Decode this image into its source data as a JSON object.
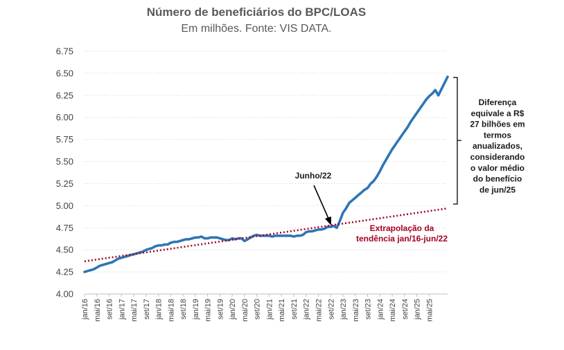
{
  "chart_data": {
    "type": "line",
    "title": "Número de beneficiários do BPC/LOAS",
    "subtitle": "Em milhões. Fonte: VIS DATA.",
    "ylim": [
      4.0,
      6.75
    ],
    "yticks": [
      "4.00",
      "4.25",
      "4.50",
      "4.75",
      "5.00",
      "5.25",
      "5.50",
      "5.75",
      "6.00",
      "6.25",
      "6.50",
      "6.75"
    ],
    "grid": true,
    "x_tick_labels": [
      "jan/16",
      "mai/16",
      "set/16",
      "jan/17",
      "mai/17",
      "set/17",
      "jan/18",
      "mai/18",
      "set/18",
      "jan/19",
      "mai/19",
      "set/19",
      "jan/20",
      "mai/20",
      "set/20",
      "jan/21",
      "mai/21",
      "set/21",
      "jan/22",
      "mai/22",
      "set/22",
      "jan/23",
      "mai/23",
      "set/23",
      "jan/24",
      "mai/24",
      "set/24",
      "jan/25",
      "mai/25"
    ],
    "series": [
      {
        "style": "line",
        "color": "#2e75b6",
        "start": "jan/16",
        "end": "jun/25",
        "values": [
          4.25,
          4.26,
          4.27,
          4.28,
          4.3,
          4.32,
          4.33,
          4.34,
          4.35,
          4.36,
          4.38,
          4.4,
          4.41,
          4.42,
          4.43,
          4.44,
          4.45,
          4.46,
          4.47,
          4.48,
          4.5,
          4.51,
          4.52,
          4.54,
          4.55,
          4.55,
          4.56,
          4.56,
          4.58,
          4.59,
          4.59,
          4.6,
          4.61,
          4.62,
          4.62,
          4.63,
          4.64,
          4.64,
          4.65,
          4.63,
          4.63,
          4.64,
          4.64,
          4.64,
          4.63,
          4.62,
          4.61,
          4.61,
          4.63,
          4.62,
          4.63,
          4.63,
          4.6,
          4.62,
          4.64,
          4.66,
          4.67,
          4.66,
          4.66,
          4.66,
          4.66,
          4.65,
          4.66,
          4.66,
          4.66,
          4.66,
          4.66,
          4.66,
          4.65,
          4.66,
          4.66,
          4.67,
          4.7,
          4.71,
          4.71,
          4.72,
          4.73,
          4.73,
          4.74,
          4.76,
          4.76,
          4.77,
          4.75,
          4.83,
          4.92,
          4.97,
          5.03,
          5.06,
          5.09,
          5.12,
          5.15,
          5.18,
          5.2,
          5.25,
          5.28,
          5.33,
          5.39,
          5.46,
          5.52,
          5.58,
          5.64,
          5.69,
          5.74,
          5.79,
          5.84,
          5.89,
          5.95,
          6.0,
          6.05,
          6.1,
          6.15,
          6.2,
          6.24,
          6.27,
          6.31,
          6.25,
          6.32,
          6.39,
          6.46
        ]
      },
      {
        "style": "dotted",
        "color": "#a50021",
        "start": "jan/16",
        "end": "jun/25",
        "values": [
          4.37,
          4.97
        ]
      }
    ],
    "annotations": {
      "june22": "Junho/22",
      "trend_line1": "Extrapolação da",
      "trend_line2": "tendência jan/16-jun/22",
      "diff_lines": [
        "Diferença",
        "equivale a R$",
        "27 bilhões em",
        "termos",
        "anualizados,",
        "considerando",
        "o valor médio",
        "do benefício",
        "de jun/25"
      ]
    }
  }
}
